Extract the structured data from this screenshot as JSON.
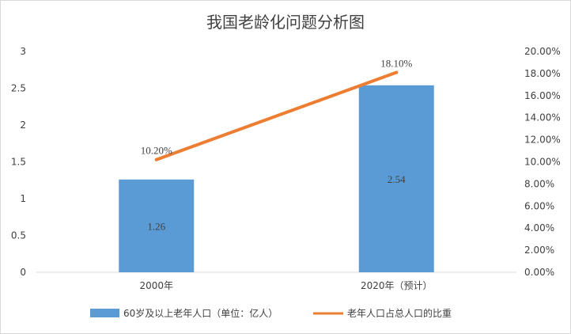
{
  "chart_data": {
    "type": "bar+line",
    "title": "我国老龄化问题分析图",
    "categories": [
      "2000年",
      "2020年（预计）"
    ],
    "series": [
      {
        "name": "60岁及以上老年人口（单位：亿人）",
        "type": "bar",
        "axis": "left",
        "color": "#5b9bd5",
        "values": [
          1.26,
          2.54
        ],
        "labels": [
          "1.26",
          "2.54"
        ]
      },
      {
        "name": "老年人口占总人口的比重",
        "type": "line",
        "axis": "right",
        "color": "#ed7d31",
        "values": [
          10.2,
          18.1
        ],
        "labels": [
          "10.20%",
          "18.10%"
        ]
      }
    ],
    "y_left": {
      "range": [
        0,
        3
      ],
      "ticks": [
        "0",
        "0.5",
        "1",
        "1.5",
        "2",
        "2.5",
        "3"
      ],
      "tick_values": [
        0,
        0.5,
        1,
        1.5,
        2,
        2.5,
        3
      ]
    },
    "y_right": {
      "range": [
        0,
        20
      ],
      "ticks": [
        "0.00%",
        "2.00%",
        "4.00%",
        "6.00%",
        "8.00%",
        "10.00%",
        "12.00%",
        "14.00%",
        "16.00%",
        "18.00%",
        "20.00%"
      ],
      "tick_values": [
        0,
        2,
        4,
        6,
        8,
        10,
        12,
        14,
        16,
        18,
        20
      ]
    },
    "grid": false,
    "legend_position": "bottom"
  }
}
